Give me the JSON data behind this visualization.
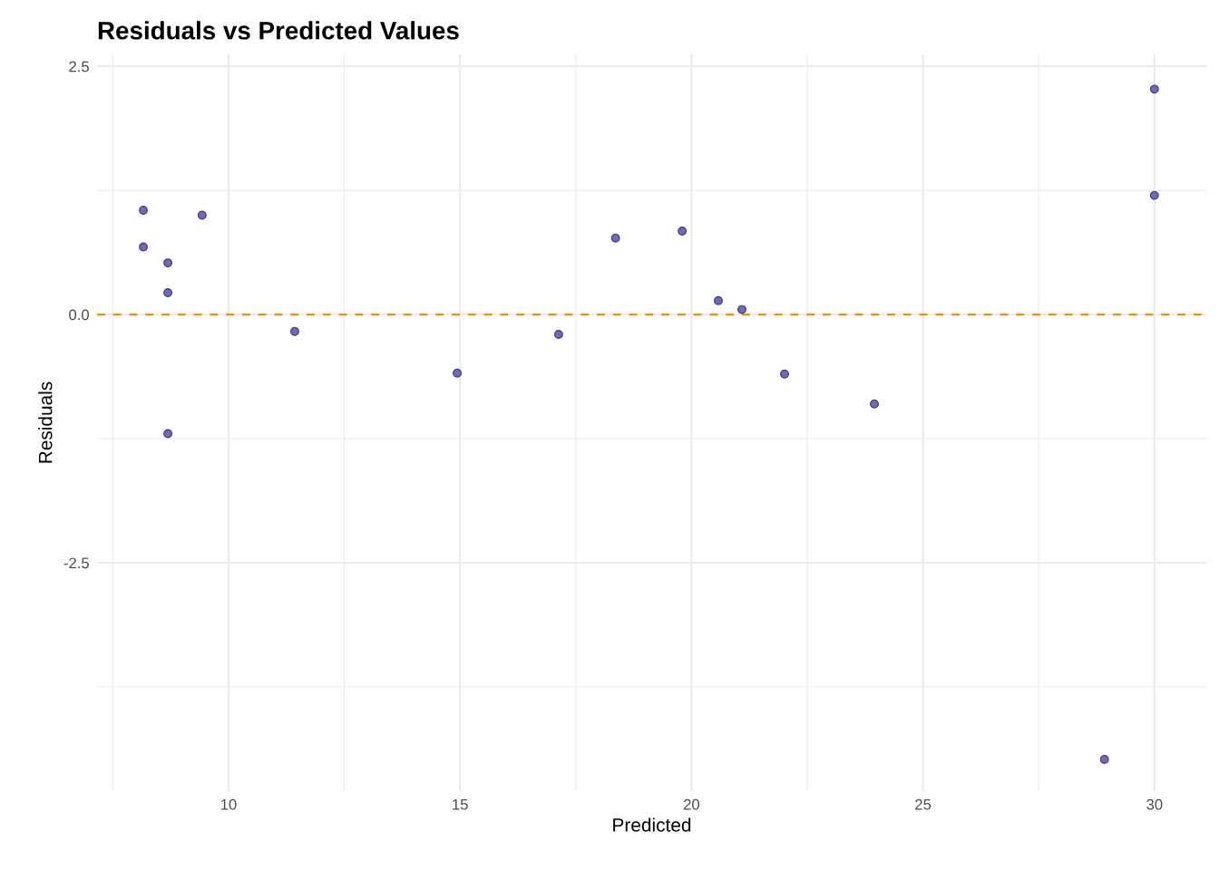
{
  "chart_data": {
    "type": "scatter",
    "title": "Residuals vs Predicted Values",
    "xlabel": "Predicted",
    "ylabel": "Residuals",
    "x": [
      8.16,
      8.16,
      8.69,
      8.69,
      8.69,
      9.43,
      11.43,
      14.94,
      17.13,
      18.36,
      19.8,
      20.58,
      21.09,
      22.01,
      23.95,
      30.0,
      30.0,
      28.92
    ],
    "series": [
      {
        "color": "#6f6bb0",
        "values": [
          1.05,
          0.68,
          0.52,
          0.22,
          -1.2,
          1.0,
          -0.17,
          -0.59,
          -0.2,
          0.77,
          0.84,
          0.14,
          0.05,
          -0.6,
          -0.9,
          2.27,
          1.2,
          -4.48
        ]
      }
    ],
    "xlim": [
      7.16,
      31.12
    ],
    "ylim": [
      -4.8,
      2.62
    ],
    "xticks": [
      {
        "value": 7.5,
        "label": null
      },
      10,
      {
        "value": 12.5,
        "label": null
      },
      15,
      {
        "value": 17.5,
        "label": null
      },
      20,
      {
        "value": 22.5,
        "label": null
      },
      25,
      {
        "value": 27.5,
        "label": null
      },
      30
    ],
    "yticks": [
      {
        "value": -3.75,
        "label": null
      },
      {
        "value": -2.5,
        "label": "-2.5"
      },
      {
        "value": -1.25,
        "label": null
      },
      {
        "value": 0,
        "label": "0.0"
      },
      {
        "value": 1.25,
        "label": null
      },
      {
        "value": 2.5,
        "label": "2.5"
      }
    ],
    "ref_lines": [
      {
        "axis": "y",
        "value": 0,
        "color": "#ff8c00",
        "line_style": "dashed"
      }
    ],
    "grid": true,
    "marker": "circle"
  }
}
